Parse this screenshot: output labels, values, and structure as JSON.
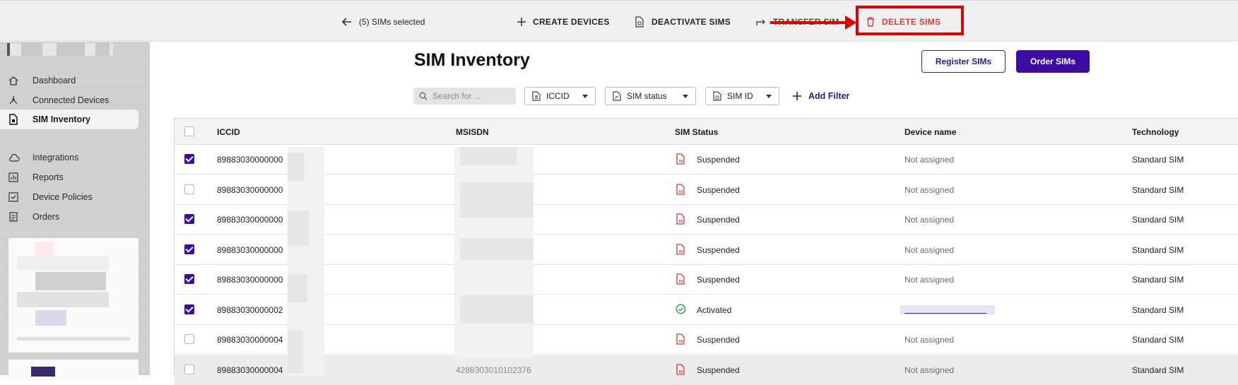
{
  "topbar": {
    "selected_label": "(5) SIMs selected",
    "create_devices": "CREATE DEVICES",
    "deactivate_sims": "DEACTIVATE SIMS",
    "transfer_sims": "TRANSFER SIM",
    "delete_sims": "DELETE SIMS"
  },
  "sidebar": {
    "items": [
      {
        "label": "Dashboard",
        "icon": "home-icon"
      },
      {
        "label": "Connected Devices",
        "icon": "network-icon"
      },
      {
        "label": "SIM Inventory",
        "icon": "sim-card-icon",
        "active": true
      },
      {
        "label": "Integrations",
        "icon": "cloud-icon"
      },
      {
        "label": "Reports",
        "icon": "bar-chart-icon"
      },
      {
        "label": "Device Policies",
        "icon": "policy-check-icon"
      },
      {
        "label": "Orders",
        "icon": "document-icon"
      }
    ]
  },
  "page": {
    "title": "SIM Inventory",
    "register_button": "Register SIMs",
    "order_button": "Order SIMs",
    "search_placeholder": "Search for ...",
    "filters": [
      "ICCID",
      "SIM status",
      "SIM ID"
    ],
    "add_filter": "Add Filter"
  },
  "table": {
    "columns": [
      "ICCID",
      "MSISDN",
      "SIM Status",
      "Device name",
      "Technology"
    ],
    "rows": [
      {
        "checked": true,
        "iccid": "89883030000000",
        "status": "Suspended",
        "device": "Not assigned",
        "tech": "Standard SIM"
      },
      {
        "checked": false,
        "iccid": "89883030000000",
        "status": "Suspended",
        "device": "Not assigned",
        "tech": "Standard SIM"
      },
      {
        "checked": true,
        "iccid": "89883030000000",
        "status": "Suspended",
        "device": "Not assigned",
        "tech": "Standard SIM"
      },
      {
        "checked": true,
        "iccid": "89883030000000",
        "status": "Suspended",
        "device": "Not assigned",
        "tech": "Standard SIM"
      },
      {
        "checked": true,
        "iccid": "89883030000000",
        "status": "Suspended",
        "device": "Not assigned",
        "tech": "Standard SIM"
      },
      {
        "checked": true,
        "iccid": "89883030000002",
        "status": "Activated",
        "device": "",
        "tech": "Standard SIM"
      },
      {
        "checked": false,
        "iccid": "89883030000004",
        "status": "Suspended",
        "device": "Not assigned",
        "tech": "Standard SIM"
      },
      {
        "checked": false,
        "iccid": "89883030000004",
        "msisdn_partial": "4288303010102376",
        "status": "Suspended",
        "device": "Not assigned",
        "tech": "Standard SIM"
      }
    ]
  },
  "colors": {
    "brand": "#3a0ca3",
    "danger": "#d63b3b",
    "highlight": "#e00000",
    "activated": "#2e9e4a"
  }
}
